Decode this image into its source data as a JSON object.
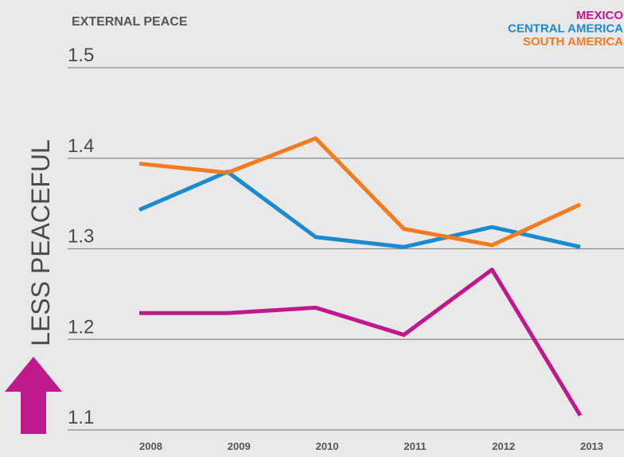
{
  "chart_data": {
    "type": "line",
    "title": "EXTERNAL PEACE",
    "y_label": "LESS PEACEFUL",
    "x": [
      2008,
      2009,
      2010,
      2011,
      2012,
      2013
    ],
    "series": [
      {
        "name": "MEXICO",
        "color": "#c0198b",
        "values": [
          1.229,
          1.229,
          1.235,
          1.205,
          1.277,
          1.116
        ]
      },
      {
        "name": "CENTRAL AMERICA",
        "color": "#1b8ad0",
        "values": [
          1.343,
          1.385,
          1.313,
          1.302,
          1.324,
          1.302
        ]
      },
      {
        "name": "SOUTH AMERICA",
        "color": "#f47b20",
        "values": [
          1.394,
          1.384,
          1.422,
          1.322,
          1.304,
          1.349
        ]
      }
    ],
    "ylim": [
      1.1,
      1.5
    ],
    "yticks": [
      1.1,
      1.2,
      1.3,
      1.4,
      1.5
    ],
    "grid": true,
    "legend": "top-right"
  }
}
